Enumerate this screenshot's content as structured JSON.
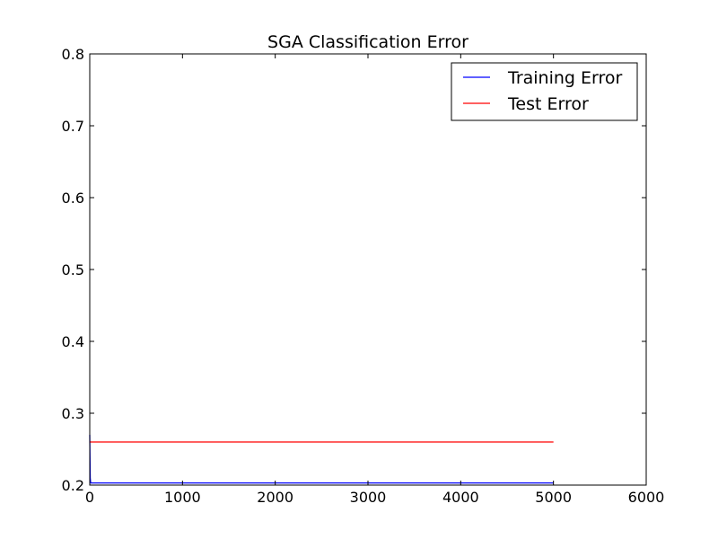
{
  "chart_data": {
    "type": "line",
    "title": "SGA Classification Error",
    "xlabel": "",
    "ylabel": "",
    "xlim": [
      0,
      6000
    ],
    "ylim": [
      0.2,
      0.8
    ],
    "xticks": [
      0,
      1000,
      2000,
      3000,
      4000,
      5000,
      6000
    ],
    "xtick_labels": [
      "0",
      "1000",
      "2000",
      "3000",
      "4000",
      "5000",
      "6000"
    ],
    "yticks": [
      0.2,
      0.3,
      0.4,
      0.5,
      0.6,
      0.7,
      0.8
    ],
    "ytick_labels": [
      "0.2",
      "0.3",
      "0.4",
      "0.5",
      "0.6",
      "0.7",
      "0.8"
    ],
    "grid": false,
    "legend_position": "top-right",
    "series": [
      {
        "name": "Training Error",
        "color": "#0000ff",
        "x": [
          0,
          5,
          10,
          5000
        ],
        "y": [
          0.27,
          0.21,
          0.203,
          0.203
        ]
      },
      {
        "name": "Test Error",
        "color": "#ff0000",
        "x": [
          0,
          5000
        ],
        "y": [
          0.26,
          0.26
        ]
      }
    ]
  }
}
